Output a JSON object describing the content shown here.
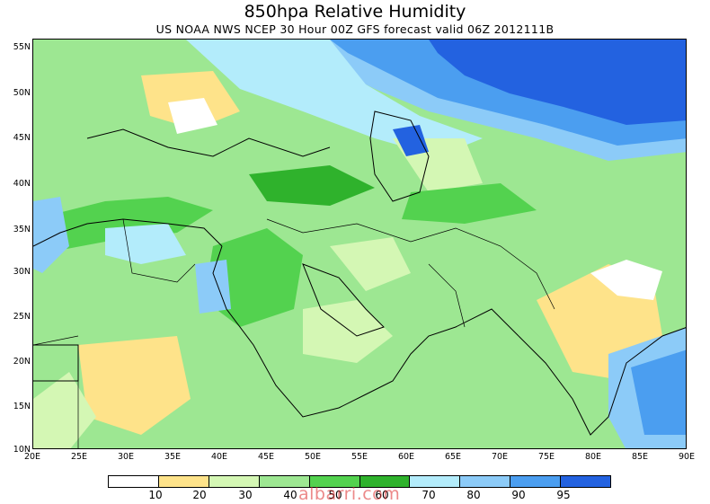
{
  "title": "850hpa Relative Humidity",
  "subtitle": "US NOAA NWS NCEP 30 Hour 00Z GFS forecast valid 06Z 2012111B",
  "map": {
    "lat_labels": [
      "55N",
      "50N",
      "45N",
      "40N",
      "35N",
      "30N",
      "25N",
      "20N",
      "15N",
      "10N"
    ],
    "lon_labels": [
      "20E",
      "25E",
      "30E",
      "35E",
      "40E",
      "45E",
      "50E",
      "55E",
      "60E",
      "65E",
      "70E",
      "75E",
      "80E",
      "85E",
      "90E"
    ],
    "lat_range": [
      10,
      55
    ],
    "lon_range": [
      20,
      90
    ]
  },
  "legend": {
    "labels": [
      "10",
      "20",
      "30",
      "40",
      "50",
      "60",
      "70",
      "80",
      "90",
      "95"
    ],
    "colors": [
      "#ffffff",
      "#fee38a",
      "#d4f7b4",
      "#9de792",
      "#53d24f",
      "#2fb22c",
      "#b3ecfb",
      "#8ccbf8",
      "#4b9ef0",
      "#2362e0"
    ]
  },
  "watermark": "albarri.com"
}
